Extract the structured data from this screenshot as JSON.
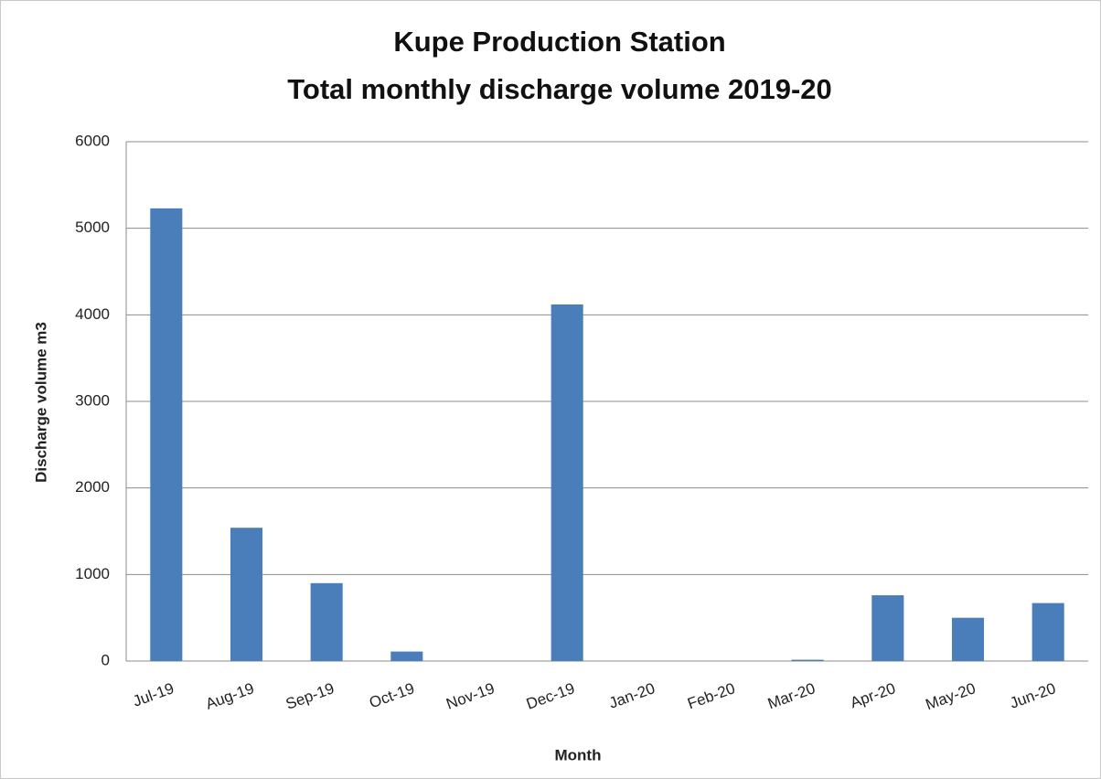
{
  "chart_data": {
    "type": "bar",
    "title": [
      "Kupe Production Station",
      "Total monthly discharge volume 2019-20"
    ],
    "x_label": "Month",
    "y_label": "Discharge volume m3",
    "categories": [
      "Jul-19",
      "Aug-19",
      "Sep-19",
      "Oct-19",
      "Nov-19",
      "Dec-19",
      "Jan-20",
      "Feb-20",
      "Mar-20",
      "Apr-20",
      "May-20",
      "Jun-20"
    ],
    "values": [
      5230,
      1540,
      900,
      110,
      0,
      4120,
      0,
      0,
      15,
      760,
      500,
      670
    ],
    "color": "#4a7ebb",
    "ylim": [
      0,
      6000
    ],
    "yticks": [
      0,
      1000,
      2000,
      3000,
      4000,
      5000,
      6000
    ],
    "grid": true
  }
}
